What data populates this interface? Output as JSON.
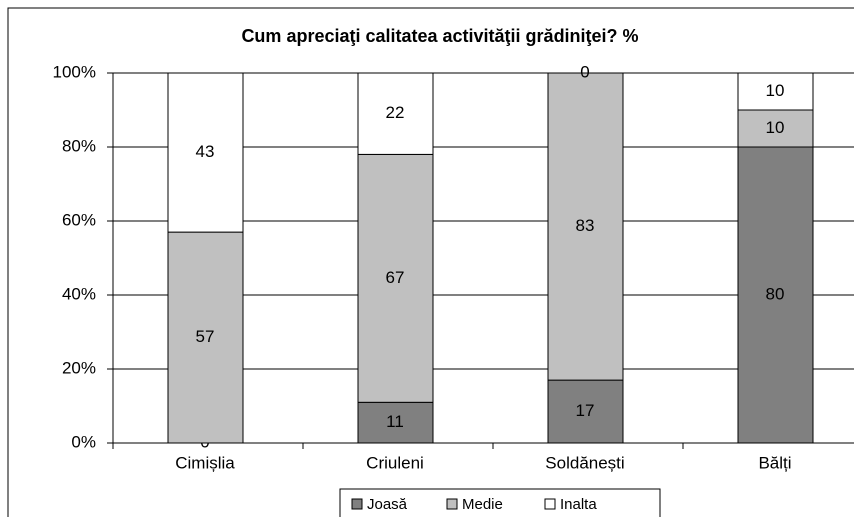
{
  "chart_data": {
    "type": "stacked_bar",
    "title": "Cum apreciaţi calitatea activităţii grădiniţei? %",
    "categories": [
      "Cimișlia",
      "Criuleni",
      "Soldănești",
      "Bălți"
    ],
    "series": [
      {
        "name": "Joasă",
        "color": "#808080",
        "values": [
          0,
          11,
          17,
          80
        ]
      },
      {
        "name": "Medie",
        "color": "#c0c0c0",
        "values": [
          57,
          67,
          83,
          10
        ]
      },
      {
        "name": "Inalta",
        "color": "#ffffff",
        "values": [
          43,
          22,
          0,
          10
        ]
      }
    ],
    "ylim": [
      0,
      100
    ],
    "yticks": [
      {
        "value": 0,
        "label": "0%"
      },
      {
        "value": 20,
        "label": "20%"
      },
      {
        "value": 40,
        "label": "40%"
      },
      {
        "value": 60,
        "label": "60%"
      },
      {
        "value": 80,
        "label": "80%"
      },
      {
        "value": 100,
        "label": "100%"
      }
    ],
    "grid": true,
    "legend": "bottom"
  }
}
